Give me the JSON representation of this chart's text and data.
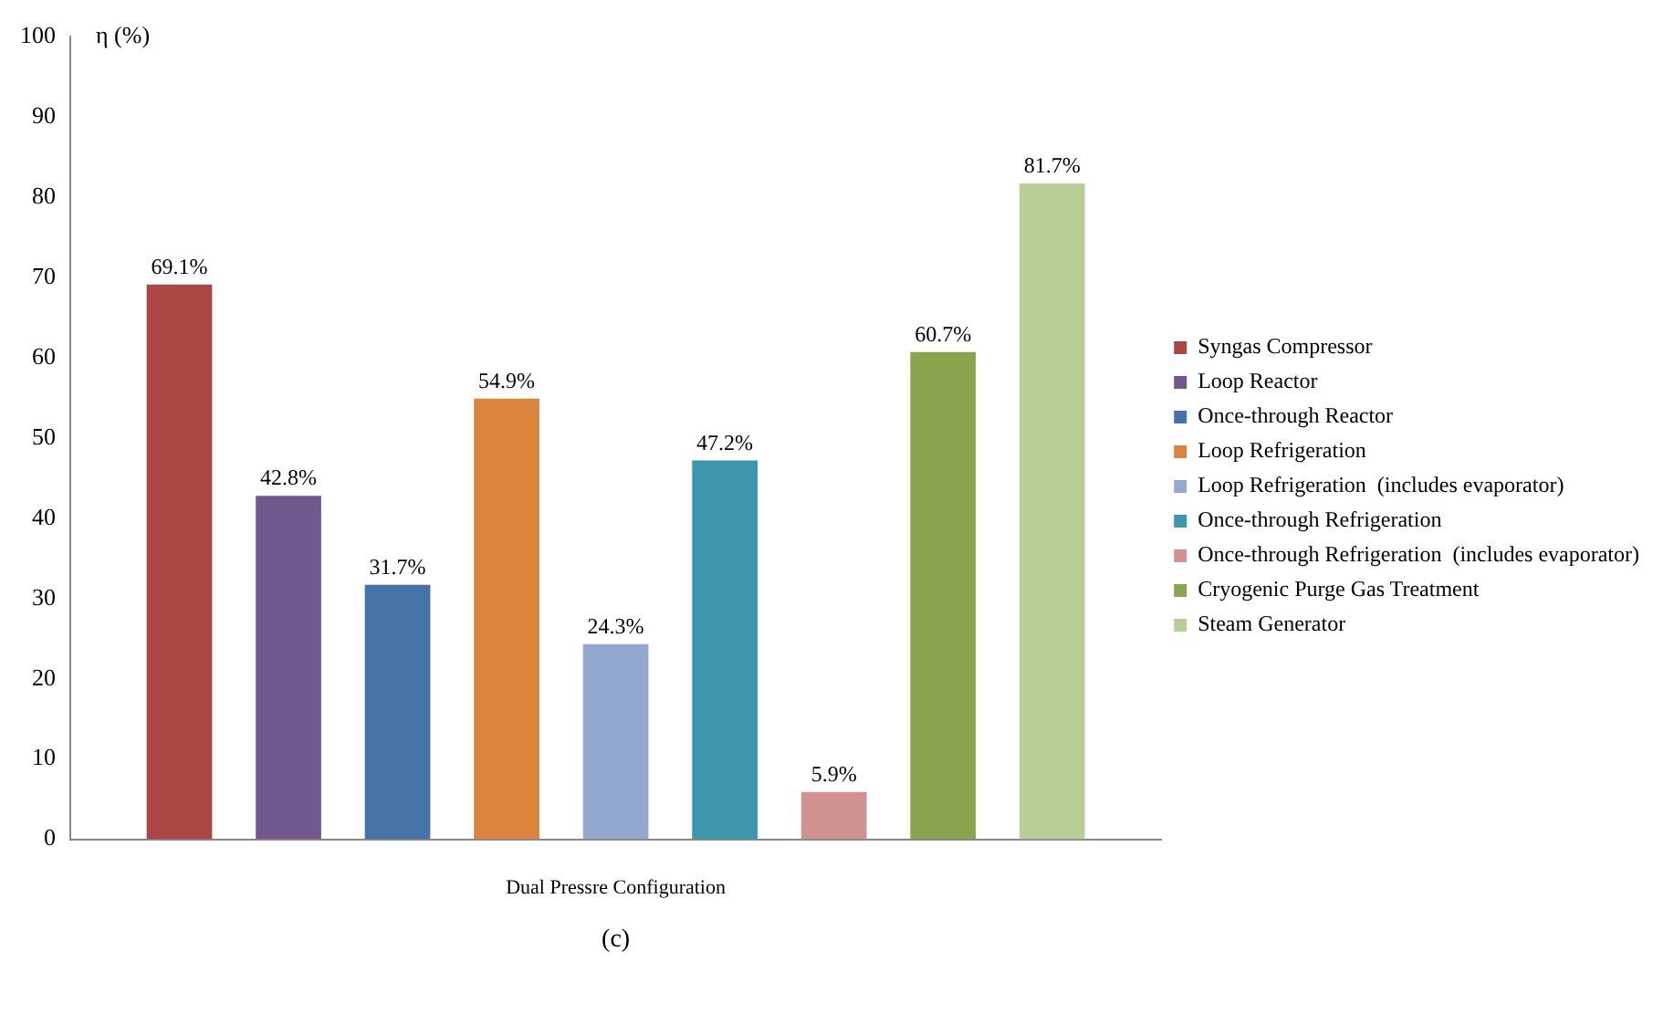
{
  "chart_data": {
    "type": "bar",
    "ylabel": "η (%)",
    "categories": [
      "Dual Pressre Configuration"
    ],
    "ylim": [
      0,
      100
    ],
    "yticks": [
      0,
      10,
      20,
      30,
      40,
      50,
      60,
      70,
      80,
      90,
      100
    ],
    "grid": false,
    "legend": "right",
    "annotations": [
      "(c)"
    ],
    "series": [
      {
        "name": "Syngas Compressor",
        "color": "#aa4643",
        "values": [
          69.1
        ],
        "value_labels": [
          "69.1%"
        ]
      },
      {
        "name": "Loop Reactor",
        "color": "#71588f",
        "values": [
          42.8
        ],
        "value_labels": [
          "42.8%"
        ]
      },
      {
        "name": "Once-through Reactor",
        "color": "#4572a7",
        "values": [
          31.7
        ],
        "value_labels": [
          "31.7%"
        ]
      },
      {
        "name": "Loop Refrigeration",
        "color": "#db843d",
        "values": [
          54.9
        ],
        "value_labels": [
          "54.9%"
        ]
      },
      {
        "name": "Loop Refrigeration  (includes evaporator)",
        "color": "#93a9cf",
        "values": [
          24.3
        ],
        "value_labels": [
          "24.3%"
        ]
      },
      {
        "name": "Once-through Refrigeration",
        "color": "#3d96ae",
        "values": [
          47.2
        ],
        "value_labels": [
          "47.2%"
        ]
      },
      {
        "name": "Once-through Refrigeration  (includes evaporator)",
        "color": "#d09392",
        "values": [
          5.9
        ],
        "value_labels": [
          "5.9%"
        ]
      },
      {
        "name": "Cryogenic Purge Gas Treatment",
        "color": "#89a54e",
        "values": [
          60.7
        ],
        "value_labels": [
          "60.7%"
        ]
      },
      {
        "name": "Steam Generator",
        "color": "#b9cd96",
        "values": [
          81.7
        ],
        "value_labels": [
          "81.7%"
        ]
      }
    ]
  }
}
